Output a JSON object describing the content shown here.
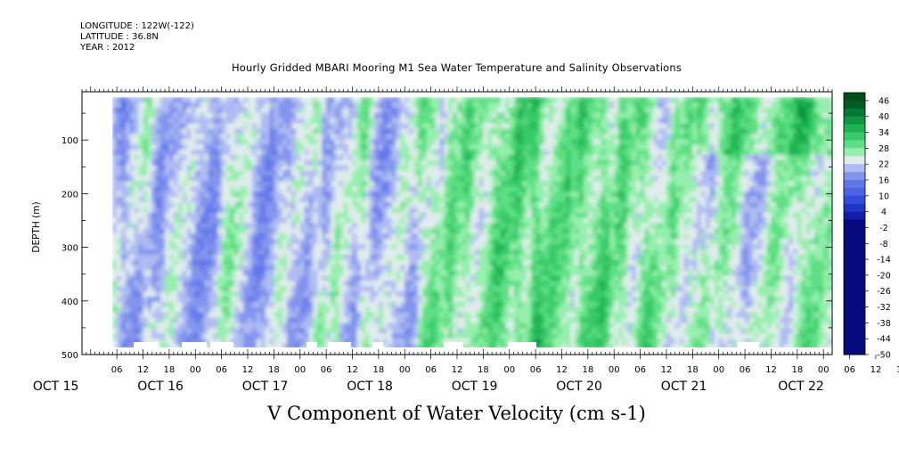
{
  "header": {
    "longitude": "LONGITUDE : 122W(-122)",
    "latitude": "LATITUDE : 36.8N",
    "year": "YEAR : 2012",
    "title": "Hourly Gridded MBARI Mooring M1 Sea Water Temperature and Salinity Observations"
  },
  "footer": {
    "variable_label": "V Component of Water Velocity (cm s-1)"
  },
  "chart_data": {
    "type": "heatmap",
    "title": "Hourly Gridded MBARI Mooring M1 Sea Water Temperature and Salinity Observations",
    "xlabel": "",
    "ylabel": "DEPTH (m)",
    "variable": "V Component of Water Velocity (cm s-1)",
    "y_axis": {
      "reversed": true,
      "ylim": [
        500,
        10
      ],
      "ticks": [
        100,
        200,
        300,
        400,
        500
      ]
    },
    "x_axis": {
      "start": "2012-10-14 22:00",
      "end": "2012-10-22 02:00",
      "hour_ticks": [
        "06",
        "12",
        "18",
        "00",
        "06",
        "12",
        "18",
        "00",
        "06",
        "12",
        "18",
        "00",
        "06",
        "12",
        "18",
        "00",
        "06",
        "12",
        "18",
        "00",
        "06",
        "12",
        "18",
        "00",
        "06",
        "12",
        "18",
        "00",
        "06",
        "12",
        "18",
        "00"
      ],
      "day_labels": [
        "OCT 15",
        "OCT 16",
        "OCT 17",
        "OCT 18",
        "OCT 19",
        "OCT 20",
        "OCT 21",
        "OCT 22"
      ]
    },
    "colorbar": {
      "levels": [
        46,
        40,
        34,
        28,
        22,
        16,
        10,
        4,
        -2,
        -8,
        -14,
        -20,
        -26,
        -32,
        -38,
        -44,
        -50
      ],
      "colors": {
        "min": "#000066",
        "strong_neg": "#1e3ecf",
        "neg": "#5a74ea",
        "weak_neg": "#a9b6f2",
        "near_zero": "#dfe9ee",
        "weak_pos": "#a6f0b8",
        "pos": "#3fd477",
        "strong_pos": "#0d9a45",
        "max": "#004d1a"
      }
    },
    "data_start_hour_offset": 7,
    "data_end_hour_offset": 172,
    "depth_range_with_data": [
      20,
      490
    ],
    "dominant_pattern_by_day": [
      {
        "day": "OCT 15",
        "mean_v_cm_s": -6
      },
      {
        "day": "OCT 16",
        "mean_v_cm_s": -4
      },
      {
        "day": "OCT 17",
        "mean_v_cm_s": -2
      },
      {
        "day": "OCT 18",
        "mean_v_cm_s": 2
      },
      {
        "day": "OCT 19",
        "mean_v_cm_s": 14
      },
      {
        "day": "OCT 20",
        "mean_v_cm_s": 10
      },
      {
        "day": "OCT 21",
        "mean_v_cm_s": 4
      }
    ]
  }
}
